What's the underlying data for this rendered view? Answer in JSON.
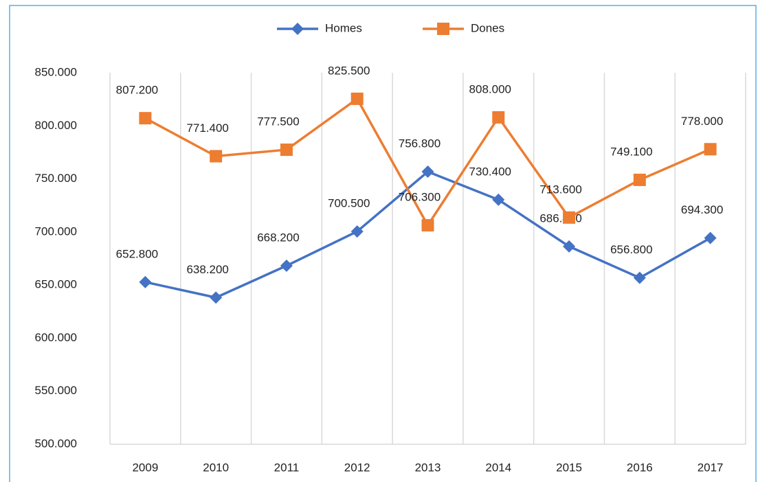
{
  "chart_data": {
    "type": "line",
    "categories": [
      "2009",
      "2010",
      "2011",
      "2012",
      "2013",
      "2014",
      "2015",
      "2016",
      "2017"
    ],
    "series": [
      {
        "name": "Homes",
        "color": "#4472c4",
        "marker": "diamond",
        "values": [
          652.8,
          638.2,
          668.2,
          700.5,
          756.8,
          730.4,
          686.4,
          656.8,
          694.3
        ],
        "value_labels": [
          "652.800",
          "638.200",
          "668.200",
          "700.500",
          "756.800",
          "730.400",
          "686.400",
          "656.800",
          "694.300"
        ]
      },
      {
        "name": "Dones",
        "color": "#ed7d31",
        "marker": "square",
        "values": [
          807.2,
          771.4,
          777.5,
          825.5,
          706.3,
          808.0,
          713.6,
          749.1,
          778.0
        ],
        "value_labels": [
          "807.200",
          "771.400",
          "777.500",
          "825.500",
          "706.300",
          "808.000",
          "713.600",
          "749.100",
          "778.000"
        ]
      }
    ],
    "ylim": [
      500,
      850
    ],
    "yticks": [
      {
        "value": 500,
        "label": "500.000"
      },
      {
        "value": 550,
        "label": "550.000"
      },
      {
        "value": 600,
        "label": "600.000"
      },
      {
        "value": 650,
        "label": "650.000"
      },
      {
        "value": 700,
        "label": "700.000"
      },
      {
        "value": 750,
        "label": "750.000"
      },
      {
        "value": 800,
        "label": "800.000"
      },
      {
        "value": 850,
        "label": "850.000"
      }
    ],
    "grid": "vertical",
    "legend": "top"
  }
}
